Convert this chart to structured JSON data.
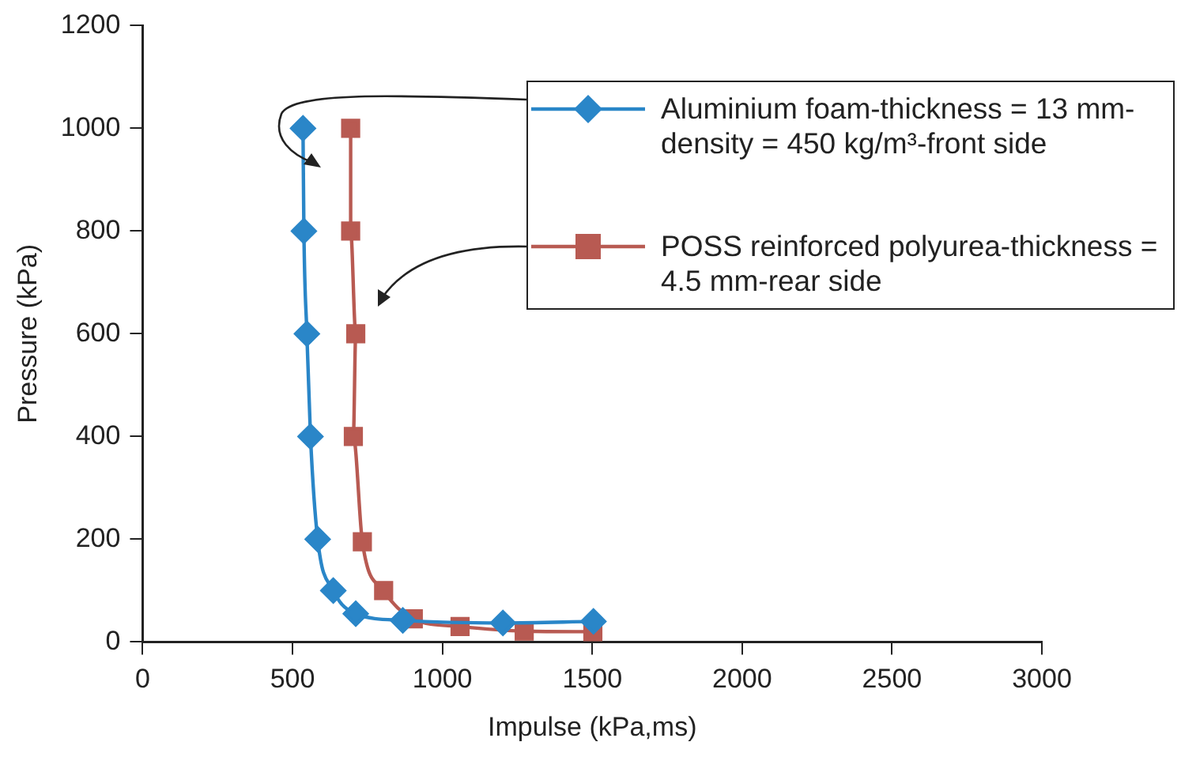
{
  "chart_data": {
    "type": "line",
    "xlabel": "Impulse (kPa,ms)",
    "ylabel": "Pressure (kPa)",
    "xlim": [
      0,
      3000
    ],
    "xticks": [
      0,
      500,
      1000,
      1500,
      2000,
      2500,
      3000
    ],
    "ylim": [
      0,
      1200
    ],
    "yticks": [
      0,
      200,
      400,
      600,
      800,
      1000,
      1200
    ],
    "grid": false,
    "legend": "top right",
    "line_style": "solid",
    "series": [
      {
        "name": "Aluminium foam-thickness = 13 mm-density = 450 kg/m³-front side",
        "color": "#2a86c8",
        "marker": "diamond",
        "x": [
          535,
          538,
          548,
          560,
          584,
          636,
          711,
          868,
          1202,
          1504
        ],
        "values": [
          1000,
          800,
          600,
          400,
          200,
          100,
          55,
          42,
          37,
          40
        ]
      },
      {
        "name": "POSS reinforced polyurea-thickness = 4.5 mm-rear side",
        "color": "#b85a52",
        "marker": "square",
        "x": [
          694,
          694,
          711,
          703,
          733,
          804,
          903,
          1059,
          1273,
          1502
        ],
        "values": [
          1000,
          800,
          600,
          400,
          195,
          100,
          45,
          30,
          21,
          20
        ]
      }
    ]
  }
}
